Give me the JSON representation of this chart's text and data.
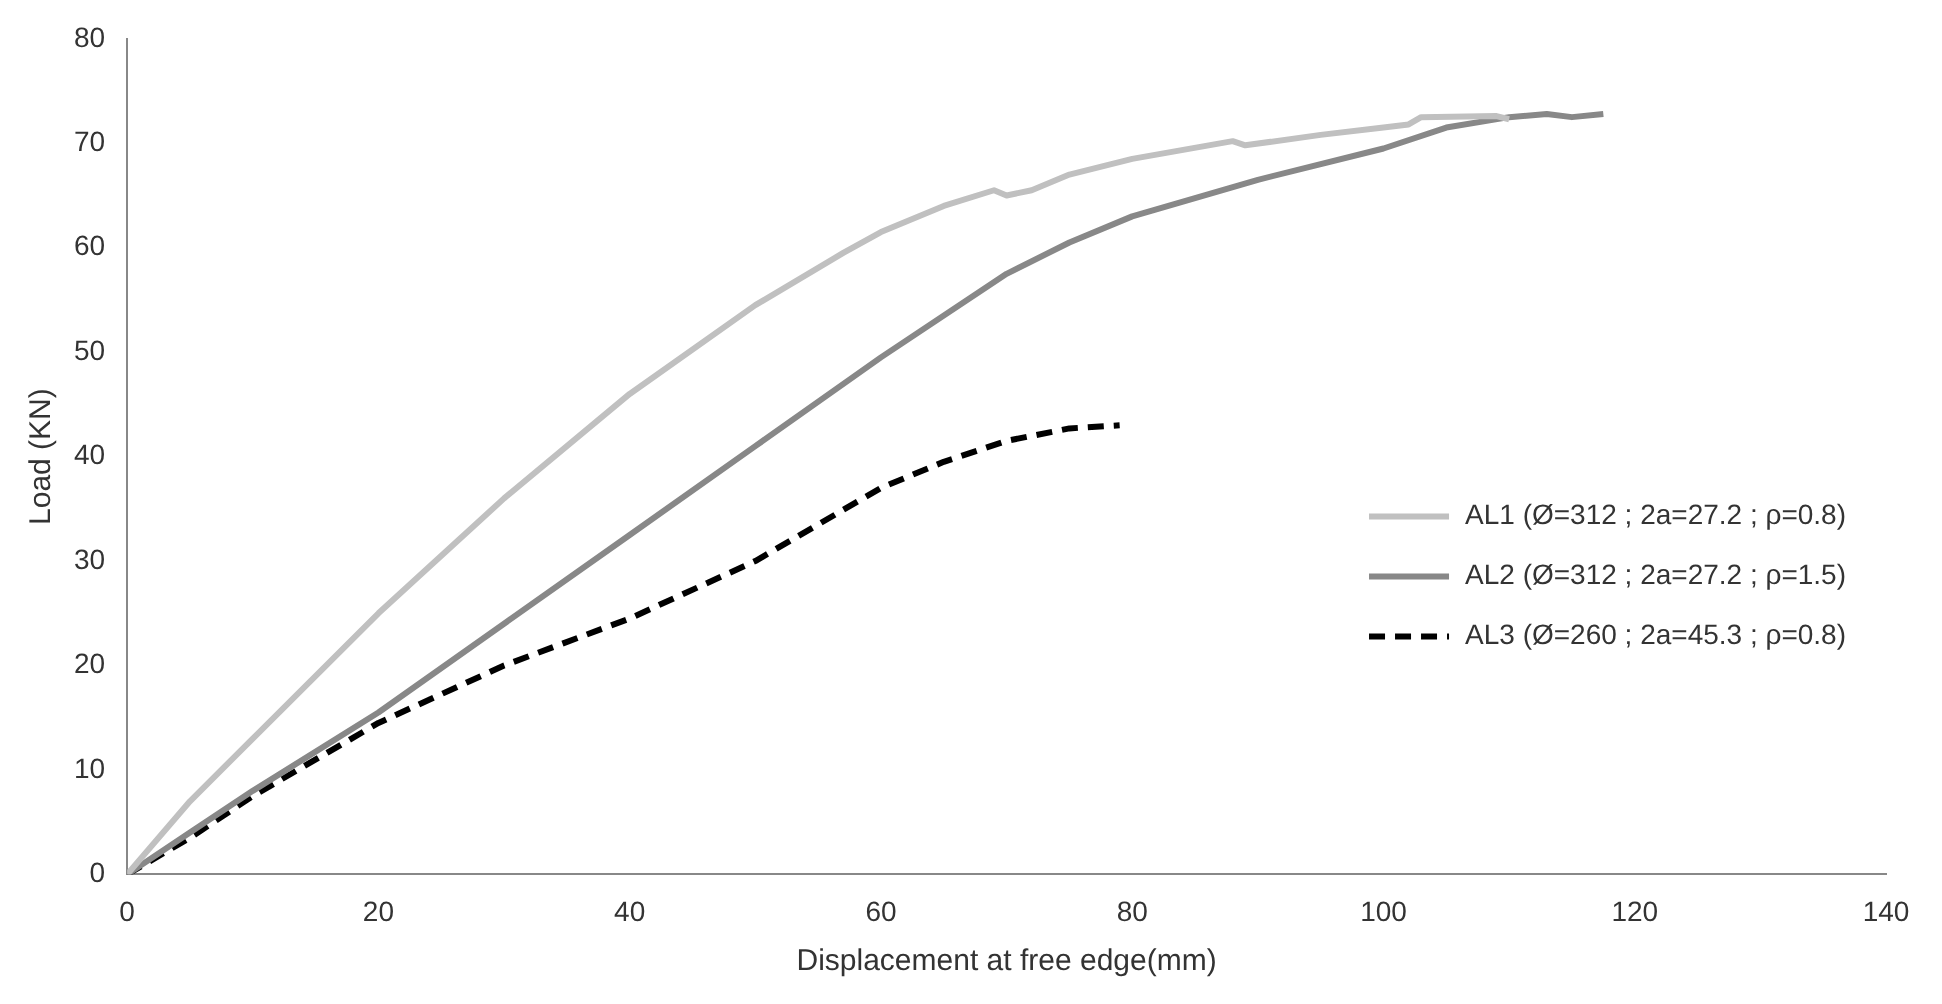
{
  "chart_data": {
    "type": "line",
    "xlabel": "Displacement at free edge(mm)",
    "ylabel": "Load (KN)",
    "xlim": [
      0,
      140
    ],
    "xticks": [
      0,
      20,
      40,
      60,
      80,
      100,
      120,
      140
    ],
    "ylim": [
      0,
      80
    ],
    "yticks": [
      0,
      10,
      20,
      30,
      40,
      50,
      60,
      70,
      80
    ],
    "grid": false,
    "legend": "right",
    "marker": "none",
    "series": [
      {
        "name": "AL1 (Ø=312 ; 2a=27.2 ; ρ=0.8)",
        "color": "#c0c0c0",
        "line_style": "solid",
        "x": [
          0,
          5,
          10,
          20,
          30,
          40,
          50,
          57,
          60,
          65,
          69,
          70,
          72,
          75,
          80,
          88,
          89,
          95,
          100,
          102,
          103,
          109,
          110
        ],
        "values": [
          0,
          7,
          13,
          25,
          36,
          46,
          54.5,
          59.5,
          61.5,
          64,
          65.5,
          65,
          65.5,
          67,
          68.5,
          70.2,
          69.8,
          70.8,
          71.5,
          71.8,
          72.5,
          72.6,
          72.3
        ]
      },
      {
        "name": "AL2 (Ø=312 ; 2a=27.2 ; ρ=1.5)",
        "color": "#888888",
        "line_style": "solid",
        "x": [
          0,
          5,
          10,
          20,
          30,
          40,
          50,
          60,
          70,
          75,
          80,
          90,
          100,
          105,
          110,
          113,
          115,
          117.5
        ],
        "values": [
          0,
          4,
          8,
          15.5,
          24,
          32.5,
          41,
          49.5,
          57.5,
          60.5,
          63,
          66.5,
          69.5,
          71.5,
          72.5,
          72.8,
          72.5,
          72.8
        ]
      },
      {
        "name": "AL3 (Ø=260 ; 2a=45.3 ; ρ=0.8)",
        "color": "#000000",
        "line_style": "dashed",
        "x": [
          0,
          5,
          10,
          20,
          30,
          40,
          50,
          60,
          65,
          70,
          75,
          79
        ],
        "values": [
          0,
          3.5,
          7.5,
          14.5,
          20,
          24.5,
          30,
          37,
          39.5,
          41.5,
          42.7,
          43
        ]
      }
    ]
  }
}
